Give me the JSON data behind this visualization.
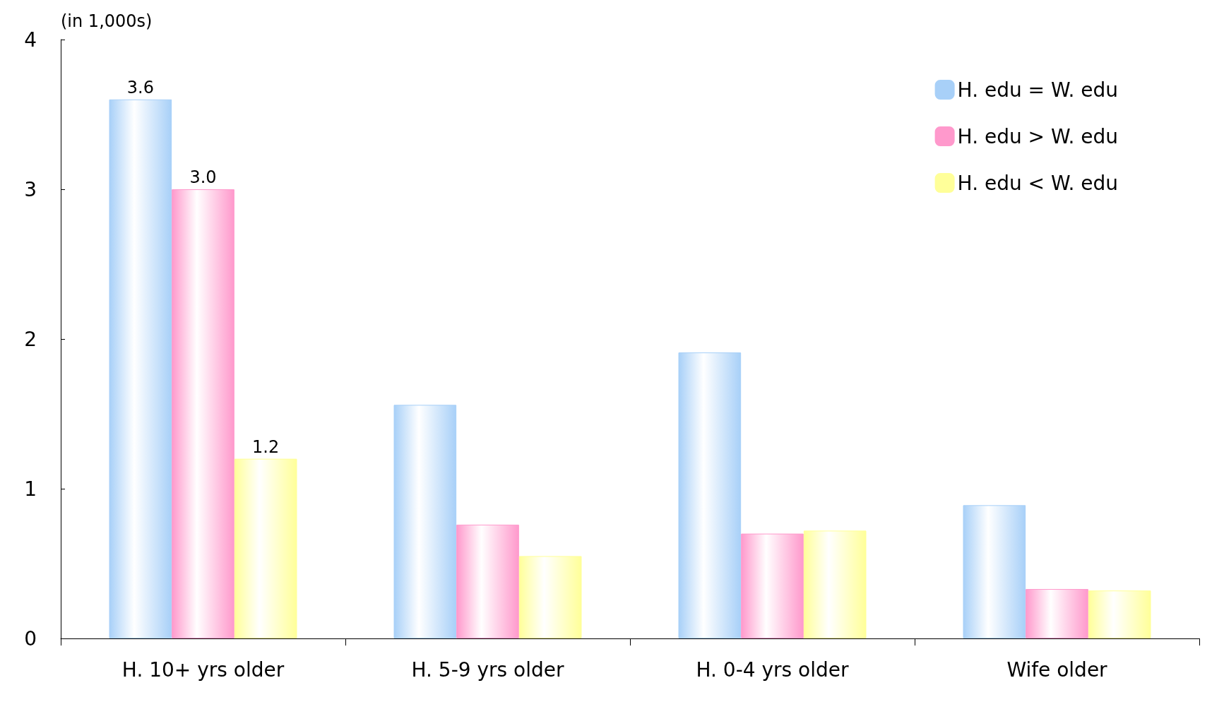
{
  "chart_data": {
    "type": "bar",
    "ylabel": "(in 1,000s)",
    "categories": [
      "H. 10+ yrs older",
      "H. 5-9 yrs older",
      "H. 0-4 yrs older",
      "Wife older"
    ],
    "series": [
      {
        "name": "H. edu = W. edu",
        "color": "#a8d0f8",
        "values": [
          3.6,
          1.56,
          1.91,
          0.89
        ],
        "value_labels": [
          "3.6",
          null,
          null,
          null
        ]
      },
      {
        "name": "H. edu > W. edu",
        "color": "#ff99cc",
        "values": [
          3.0,
          0.76,
          0.7,
          0.33
        ],
        "value_labels": [
          "3.0",
          null,
          null,
          null
        ]
      },
      {
        "name": "H. edu < W. edu",
        "color": "#ffff99",
        "values": [
          1.2,
          0.55,
          0.72,
          0.32
        ],
        "value_labels": [
          "1.2",
          null,
          null,
          null
        ]
      }
    ],
    "ylim": [
      0,
      4
    ],
    "yticks": [
      0,
      1,
      2,
      3,
      4
    ],
    "grid": false,
    "legend": "top right"
  }
}
